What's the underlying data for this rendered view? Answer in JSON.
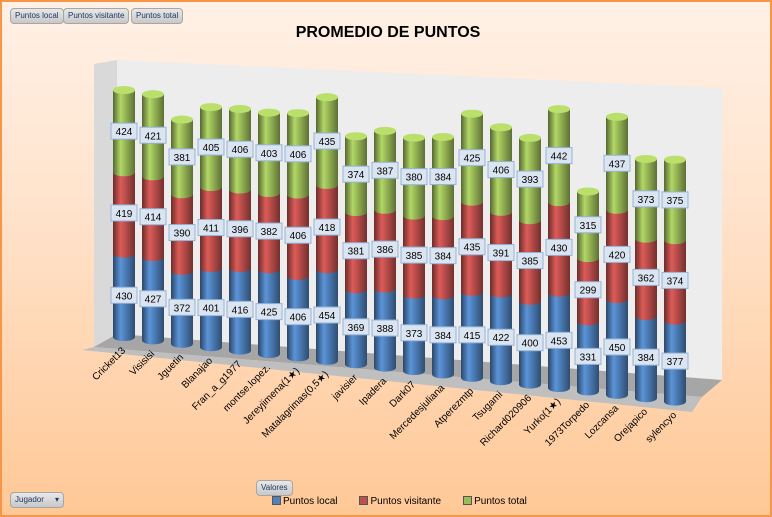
{
  "field_buttons": [
    "Puntos local",
    "Puntos visitante",
    "Puntos total"
  ],
  "values_button": "Valores",
  "axis_field_button": "Jugador",
  "colors": {
    "local": "#4f81bd",
    "visitante": "#c0504d",
    "total": "#9bbb59"
  },
  "chart_data": {
    "type": "bar",
    "subtype": "3d-stacked-cylinder",
    "title": "PROMEDIO DE PUNTOS",
    "categories": [
      "Cricket13",
      "Visisisi",
      "Jguetin",
      "Blanajao",
      "Fran_a_g1977",
      "montse.lopez.",
      "Jereyjimena(1★)",
      "Matalagrimas(0,5★)",
      "javisier",
      "Ipadera",
      "Dark07",
      "Mercedesjuliana",
      "Atperezmtp",
      "Tsugami",
      "Richard020906",
      "Yurko(1★)",
      "1973Torpedo",
      "Lozcansa",
      "Orejapico",
      "sylencyo"
    ],
    "series": [
      {
        "name": "Puntos local",
        "values": [
          430,
          427,
          372,
          401,
          416,
          425,
          406,
          454,
          369,
          388,
          373,
          384,
          415,
          422,
          400,
          453,
          331,
          450,
          384,
          377
        ]
      },
      {
        "name": "Puntos visitante",
        "values": [
          419,
          414,
          390,
          411,
          396,
          382,
          406,
          418,
          381,
          386,
          385,
          384,
          435,
          391,
          385,
          430,
          299,
          420,
          362,
          374
        ]
      },
      {
        "name": "Puntos total",
        "values": [
          424,
          421,
          381,
          405,
          406,
          403,
          406,
          435,
          374,
          387,
          380,
          384,
          425,
          406,
          393,
          442,
          315,
          437,
          373,
          375
        ]
      }
    ],
    "legend": "bottom"
  }
}
